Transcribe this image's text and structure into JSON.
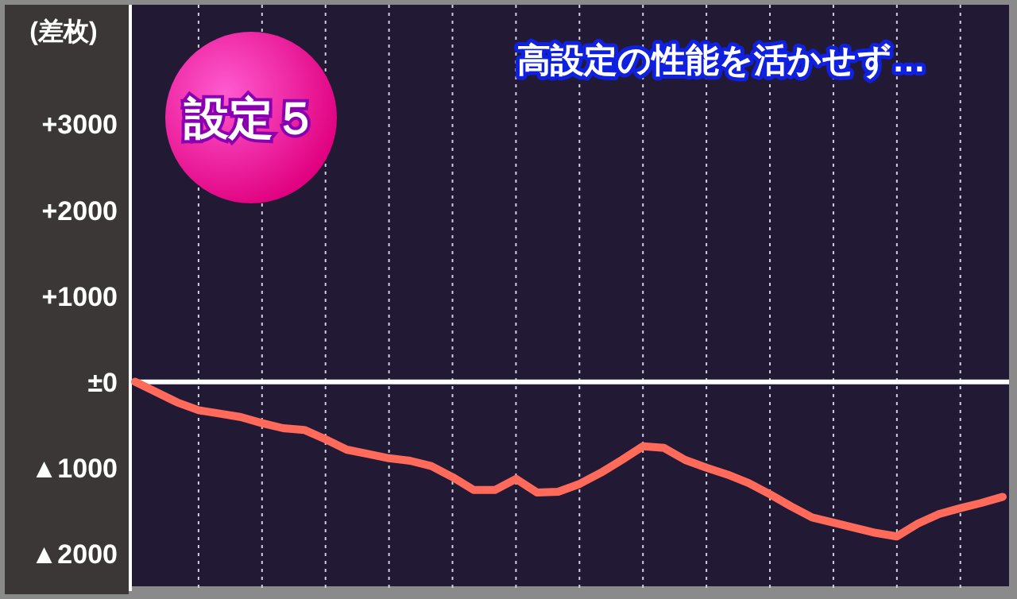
{
  "chart_data": {
    "type": "line",
    "title": "高設定の性能を活かせず…",
    "ylabel": "(差枚)",
    "annotations": [
      "設定５"
    ],
    "categories": [
      null,
      null,
      null,
      null,
      null,
      null,
      null,
      null,
      null,
      null,
      null,
      null,
      null,
      null,
      null,
      null,
      null,
      null,
      null,
      null,
      null,
      null,
      null,
      null,
      null,
      null,
      null,
      null,
      null,
      null,
      null,
      null,
      null,
      null,
      null,
      null,
      null,
      null,
      null,
      null,
      null,
      null
    ],
    "series": [
      {
        "color": "#ff6a5a",
        "values": [
          0,
          -120,
          -240,
          -330,
          -370,
          -410,
          -480,
          -540,
          -560,
          -670,
          -790,
          -840,
          -890,
          -920,
          -980,
          -1110,
          -1260,
          -1260,
          -1130,
          -1290,
          -1280,
          -1190,
          -1060,
          -910,
          -750,
          -770,
          -910,
          -1000,
          -1080,
          -1180,
          -1310,
          -1450,
          -1580,
          -1640,
          -1700,
          -1760,
          -1800,
          -1650,
          -1540,
          -1470,
          -1410,
          -1340
        ]
      }
    ],
    "ylim": [
      -2400,
      4300
    ],
    "yticks": [
      {
        "value": 3000,
        "label": "+3000"
      },
      {
        "value": 2000,
        "label": "+2000"
      },
      {
        "value": 1000,
        "label": "+1000"
      },
      {
        "value": 0,
        "label": "±0"
      },
      {
        "value": -1000,
        "label": "▲1000"
      },
      {
        "value": -2000,
        "label": "▲2000"
      }
    ],
    "ref_lines": [
      {
        "axis": "y",
        "value": 0,
        "color": "#ffffff"
      }
    ],
    "grid": "x",
    "line_style": "solid",
    "marker": "none",
    "tick_labels": "y"
  }
}
